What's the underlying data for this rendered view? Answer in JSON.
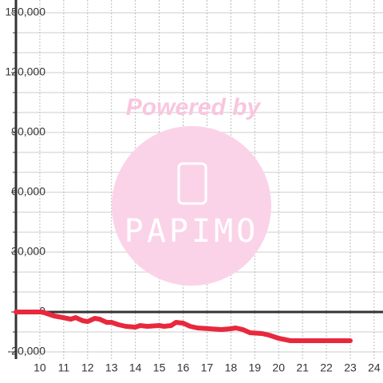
{
  "chart_data": {
    "type": "line",
    "xlim": [
      9,
      24.37
    ],
    "xticks": [
      10,
      11,
      12,
      13,
      14,
      15,
      16,
      17,
      18,
      19,
      20,
      21,
      22,
      23,
      24
    ],
    "ylim": [
      -23600,
      156400
    ],
    "yticks": [
      {
        "value": -20000,
        "label": "-20,000"
      },
      0,
      {
        "value": 30000,
        "label": "30,000"
      },
      {
        "value": 60000,
        "label": "60,000"
      },
      {
        "value": 90000,
        "label": "90,000"
      },
      {
        "value": 120000,
        "label": "120,000"
      },
      {
        "value": 150000,
        "label": "150,000"
      }
    ],
    "y_minor_ticks": [
      -20000,
      -10000,
      10000,
      20000,
      40000,
      50000,
      70000,
      80000,
      100000,
      110000,
      130000,
      140000
    ],
    "grid": true,
    "series": [
      {
        "color": "#e8283c",
        "x": [
          9,
          10.1,
          10.6,
          10.97,
          11.3,
          11.5,
          11.8,
          12.0,
          12.3,
          12.5,
          12.8,
          13.0,
          13.3,
          13.6,
          14.0,
          14.2,
          14.5,
          15.0,
          15.2,
          15.5,
          15.7,
          16.0,
          16.3,
          16.6,
          17.1,
          17.6,
          18.0,
          18.2,
          18.5,
          18.8,
          19.3,
          19.6,
          20.0,
          20.5,
          21.0,
          22.0,
          23.0
        ],
        "values": [
          0,
          0,
          -2000,
          -2800,
          -3600,
          -2800,
          -4400,
          -4800,
          -3200,
          -3600,
          -5200,
          -5200,
          -6400,
          -7200,
          -7600,
          -6800,
          -7200,
          -6800,
          -7200,
          -6800,
          -5200,
          -5600,
          -7200,
          -8000,
          -8400,
          -8800,
          -8400,
          -8000,
          -8800,
          -10400,
          -10800,
          -11600,
          -13200,
          -14400,
          -14400,
          -14400,
          -14400
        ]
      }
    ]
  },
  "watermark": {
    "text": "Powered by",
    "logo": "PAPIMO"
  }
}
